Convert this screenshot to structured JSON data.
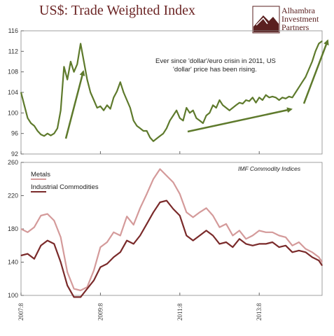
{
  "title": "US$: Trade Weighted Index",
  "logo": {
    "lines": [
      "Alhambra",
      "Investment",
      "Partners"
    ],
    "mark": "mountain-logo-icon"
  },
  "colors": {
    "title": "#6b2424",
    "usd": "#5e7a2c",
    "metals": "#d49a9a",
    "industrial": "#7a2a2a",
    "arrow": "#5e7a2c"
  },
  "chart_data": [
    {
      "type": "line",
      "title": "US$: Trade Weighted Index",
      "xlabel": "",
      "ylabel": "",
      "ylim": [
        92,
        116
      ],
      "y_ticks": [
        92,
        96,
        100,
        104,
        108,
        112,
        116
      ],
      "grid": false,
      "annotation": "Ever since 'dollar'/euro crisin in 2011, US 'dollar' price has been rising.",
      "series": [
        {
          "x": [
            "2007-08",
            "2007-09",
            "2007-10",
            "2007-11",
            "2007-12",
            "2008-01",
            "2008-02",
            "2008-03",
            "2008-04",
            "2008-05",
            "2008-06",
            "2008-07",
            "2008-08",
            "2008-09",
            "2008-10",
            "2008-11",
            "2008-12",
            "2009-01",
            "2009-02",
            "2009-03",
            "2009-04",
            "2009-05",
            "2009-06",
            "2009-07",
            "2009-08",
            "2009-09",
            "2009-10",
            "2009-11",
            "2009-12",
            "2010-01",
            "2010-02",
            "2010-03",
            "2010-04",
            "2010-05",
            "2010-06",
            "2010-07",
            "2010-08",
            "2010-09",
            "2010-10",
            "2010-11",
            "2010-12",
            "2011-01",
            "2011-02",
            "2011-03",
            "2011-04",
            "2011-05",
            "2011-06",
            "2011-07",
            "2011-08",
            "2011-09",
            "2011-10",
            "2011-11",
            "2011-12",
            "2012-01",
            "2012-02",
            "2012-03",
            "2012-04",
            "2012-05",
            "2012-06",
            "2012-07",
            "2012-08",
            "2012-09",
            "2012-10",
            "2012-11",
            "2012-12",
            "2013-01",
            "2013-02",
            "2013-03",
            "2013-04",
            "2013-05",
            "2013-06",
            "2013-07",
            "2013-08",
            "2013-09",
            "2013-10",
            "2013-11",
            "2013-12",
            "2014-01",
            "2014-02",
            "2014-03",
            "2014-04",
            "2014-05",
            "2014-06",
            "2014-07",
            "2014-08",
            "2014-09",
            "2014-10",
            "2014-11",
            "2014-12",
            "2015-01",
            "2015-02",
            "2015-03"
          ],
          "values": [
            104,
            101.5,
            99,
            98,
            97.5,
            96.5,
            95.8,
            95.5,
            96,
            95.6,
            96,
            97,
            100.5,
            109,
            106.5,
            110,
            108,
            109.5,
            113.5,
            110,
            106.5,
            104,
            102.5,
            101,
            101.3,
            100.5,
            101.5,
            100.8,
            103,
            104.2,
            106,
            104,
            102.5,
            101,
            98.5,
            97.5,
            97,
            96.5,
            96.5,
            95.2,
            94.5,
            95,
            95.5,
            96,
            97,
            98.5,
            99.5,
            100.5,
            99,
            98.5,
            101,
            100,
            100.5,
            99,
            98.5,
            98,
            99.5,
            100,
            101.5,
            101,
            102.5,
            101.5,
            101,
            100.5,
            101,
            101.5,
            102,
            101.8,
            102.5,
            102.3,
            103,
            102,
            103,
            102.5,
            103.5,
            103,
            103.2,
            103,
            102.5,
            103,
            102.8,
            103.2,
            103,
            104,
            105,
            106,
            107,
            108.5,
            110,
            112,
            113.5,
            114
          ]
        }
      ]
    },
    {
      "type": "line",
      "title": "IMF Commodity Indices",
      "xlabel": "",
      "ylabel": "",
      "ylim": [
        100,
        260
      ],
      "y_ticks": [
        100,
        140,
        180,
        220,
        260
      ],
      "x_tick_labels": [
        "2007:8",
        "2009:8",
        "2011:8",
        "2013:8"
      ],
      "grid": false,
      "legend": "top-left",
      "series": [
        {
          "name": "Metals",
          "x": [
            "2007-08",
            "2007-10",
            "2007-12",
            "2008-02",
            "2008-04",
            "2008-06",
            "2008-08",
            "2008-10",
            "2008-12",
            "2009-02",
            "2009-04",
            "2009-06",
            "2009-08",
            "2009-10",
            "2009-12",
            "2010-02",
            "2010-04",
            "2010-06",
            "2010-08",
            "2010-10",
            "2010-12",
            "2011-02",
            "2011-04",
            "2011-06",
            "2011-08",
            "2011-10",
            "2011-12",
            "2012-02",
            "2012-04",
            "2012-06",
            "2012-08",
            "2012-10",
            "2012-12",
            "2013-02",
            "2013-04",
            "2013-06",
            "2013-08",
            "2013-10",
            "2013-12",
            "2014-02",
            "2014-04",
            "2014-06",
            "2014-08",
            "2014-10",
            "2014-12",
            "2015-02",
            "2015-03"
          ],
          "values": [
            180,
            176,
            182,
            196,
            198,
            190,
            170,
            128,
            108,
            106,
            110,
            130,
            158,
            164,
            176,
            172,
            195,
            185,
            205,
            222,
            240,
            252,
            244,
            236,
            222,
            200,
            194,
            200,
            205,
            196,
            182,
            186,
            172,
            178,
            168,
            172,
            178,
            176,
            176,
            172,
            170,
            160,
            164,
            156,
            152,
            146,
            140
          ]
        },
        {
          "name": "Industrial Commodities",
          "x": [
            "2007-08",
            "2007-10",
            "2007-12",
            "2008-02",
            "2008-04",
            "2008-06",
            "2008-08",
            "2008-10",
            "2008-12",
            "2009-02",
            "2009-04",
            "2009-06",
            "2009-08",
            "2009-10",
            "2009-12",
            "2010-02",
            "2010-04",
            "2010-06",
            "2010-08",
            "2010-10",
            "2010-12",
            "2011-02",
            "2011-04",
            "2011-06",
            "2011-08",
            "2011-10",
            "2011-12",
            "2012-02",
            "2012-04",
            "2012-06",
            "2012-08",
            "2012-10",
            "2012-12",
            "2013-02",
            "2013-04",
            "2013-06",
            "2013-08",
            "2013-10",
            "2013-12",
            "2014-02",
            "2014-04",
            "2014-06",
            "2014-08",
            "2014-10",
            "2014-12",
            "2015-02",
            "2015-03"
          ],
          "values": [
            148,
            150,
            144,
            160,
            166,
            162,
            140,
            112,
            98,
            98,
            108,
            118,
            134,
            138,
            146,
            152,
            166,
            162,
            172,
            186,
            200,
            212,
            214,
            204,
            196,
            172,
            166,
            172,
            178,
            172,
            162,
            164,
            158,
            168,
            162,
            160,
            162,
            162,
            164,
            158,
            160,
            152,
            154,
            152,
            146,
            142,
            136
          ]
        }
      ]
    }
  ]
}
